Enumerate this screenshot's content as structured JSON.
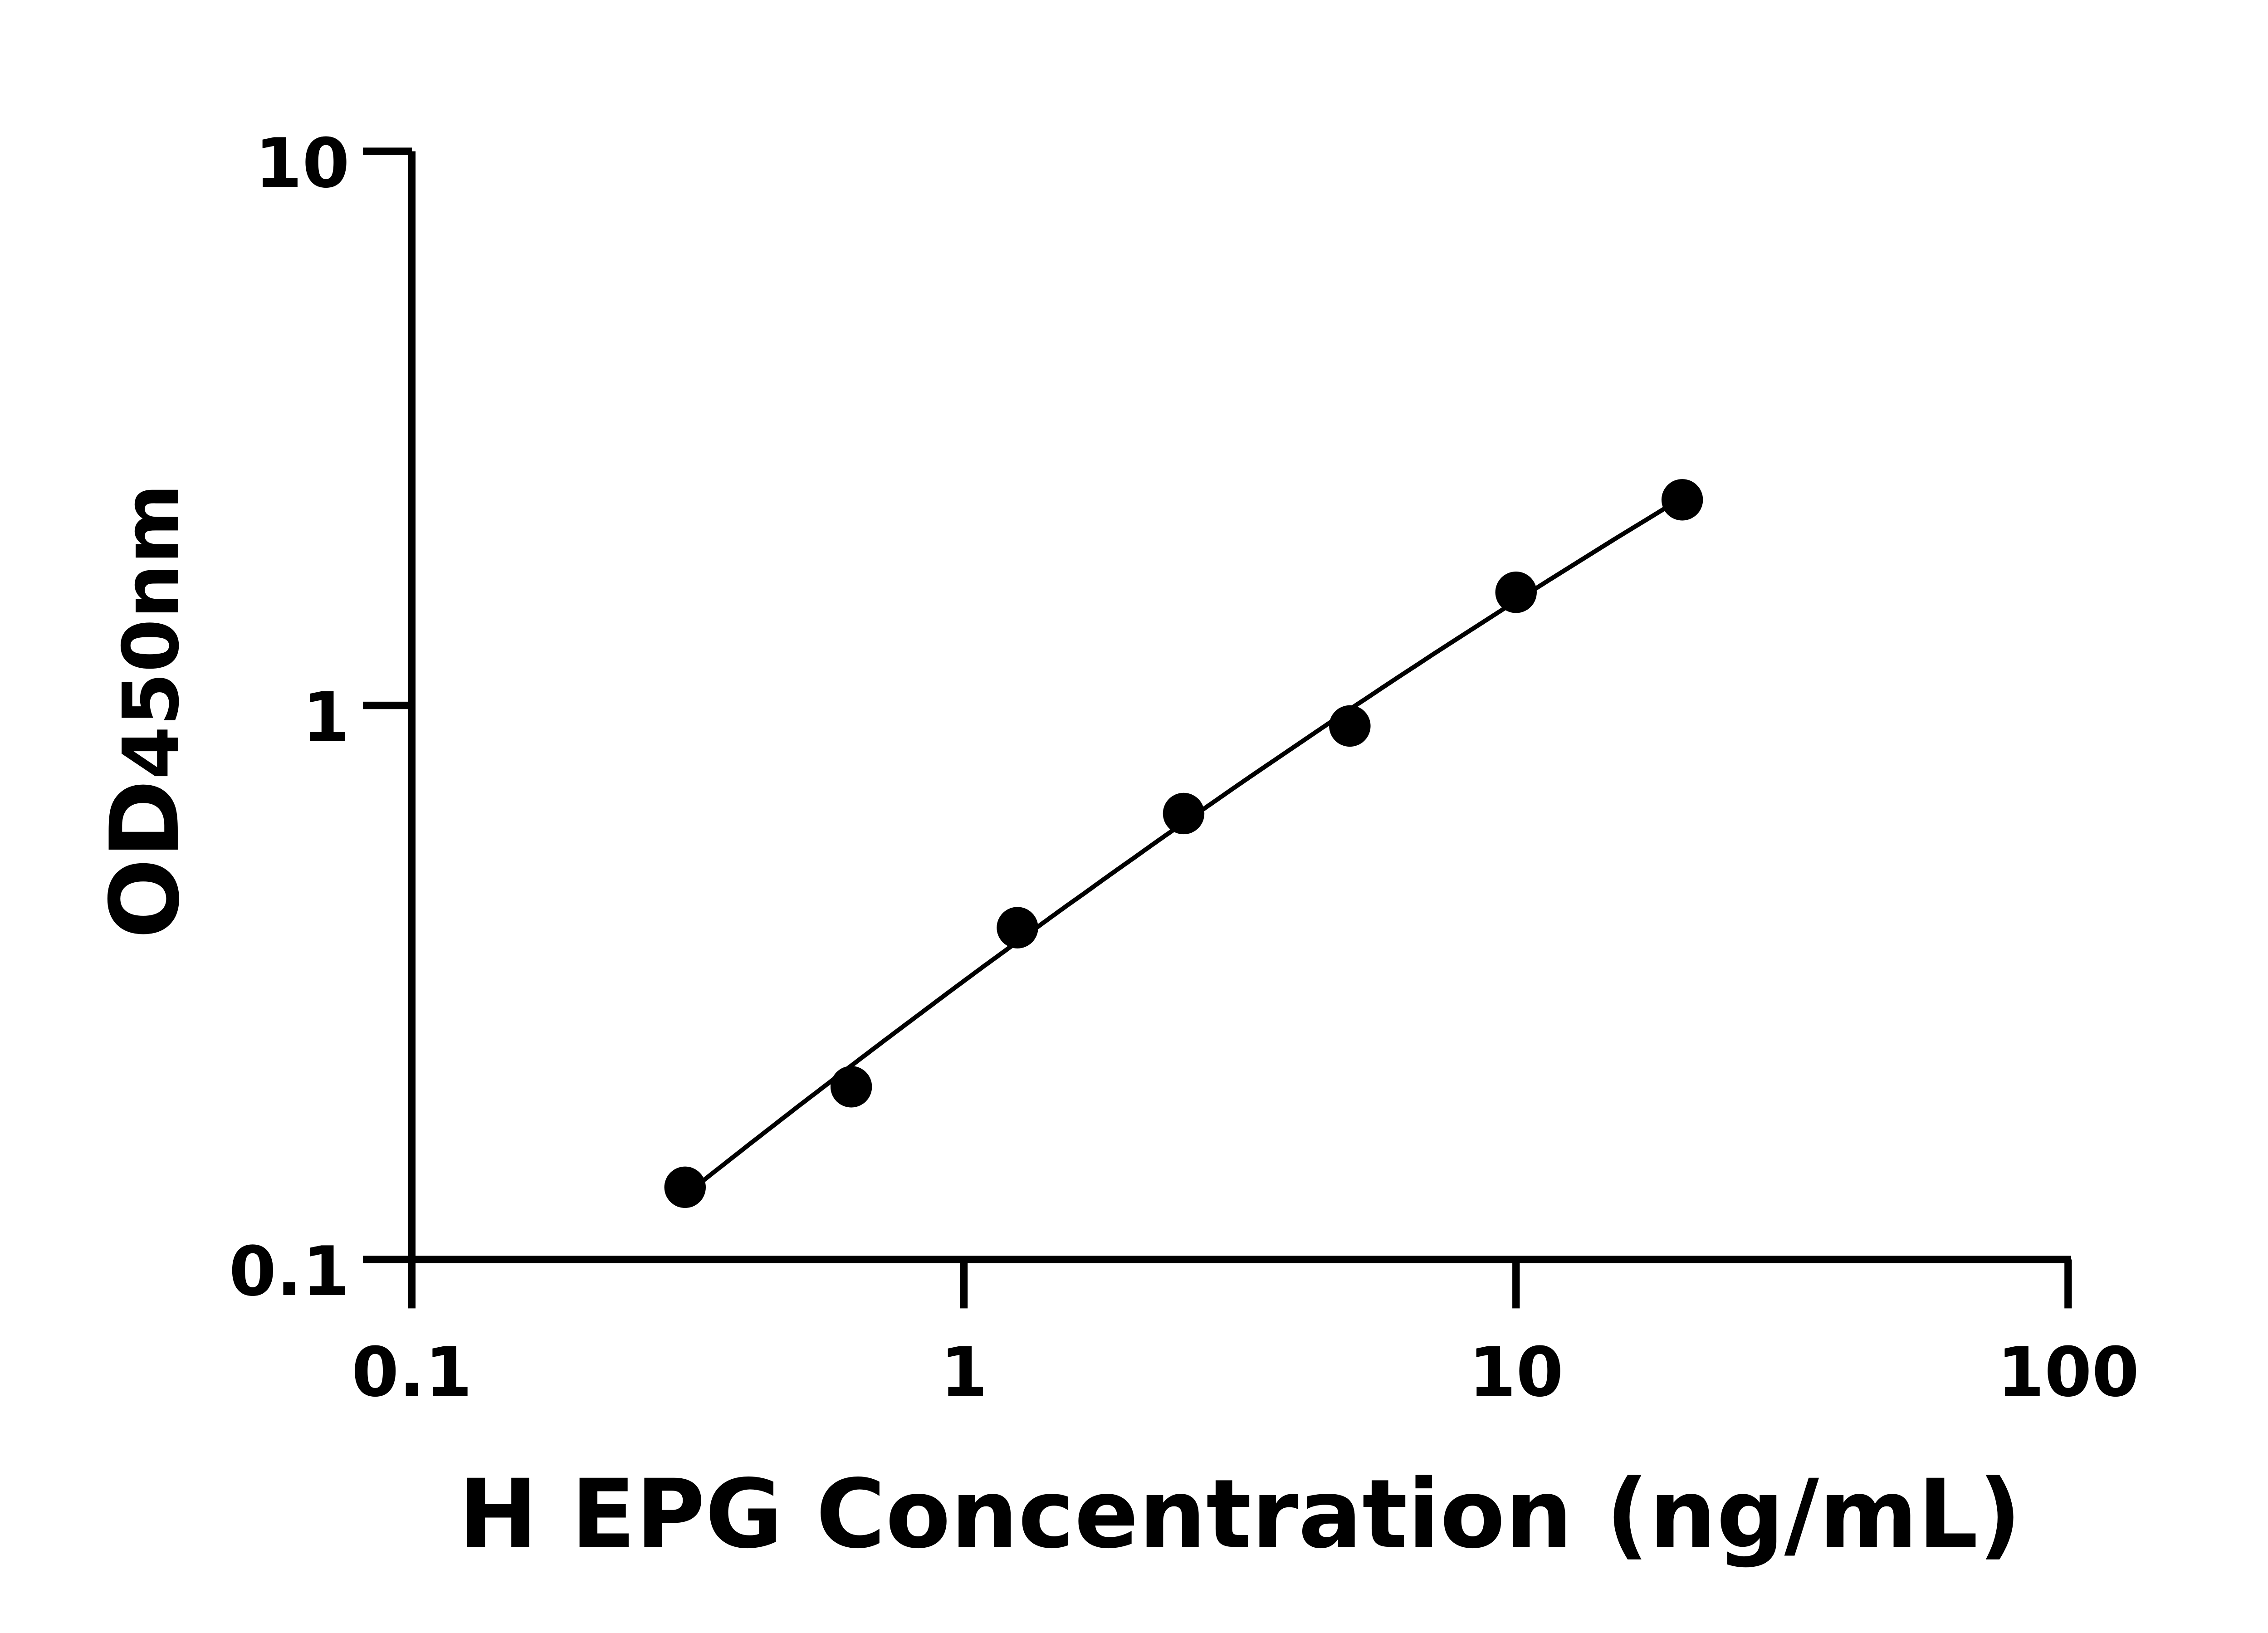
{
  "chart_data": {
    "type": "scatter",
    "title": "",
    "xlabel": "H EPG Concentration (ng/mL)",
    "ylabel_main": "OD",
    "ylabel_sub": "450nm",
    "x_scale": "log",
    "y_scale": "log",
    "xlim": [
      0.1,
      100
    ],
    "ylim": [
      0.1,
      10
    ],
    "x_ticks": [
      "0.1",
      "1",
      "10",
      "100"
    ],
    "y_ticks": [
      "0.1",
      "1",
      "10"
    ],
    "grid": false,
    "fit_line": true,
    "colors": {
      "points": "#000000",
      "line": "#000000",
      "axes": "#000000"
    },
    "series": [
      {
        "x": [
          0.3125,
          0.625,
          1.25,
          2.5,
          5,
          10,
          20
        ],
        "y": [
          0.135,
          0.205,
          0.397,
          0.638,
          0.918,
          1.6,
          2.35
        ]
      }
    ]
  }
}
